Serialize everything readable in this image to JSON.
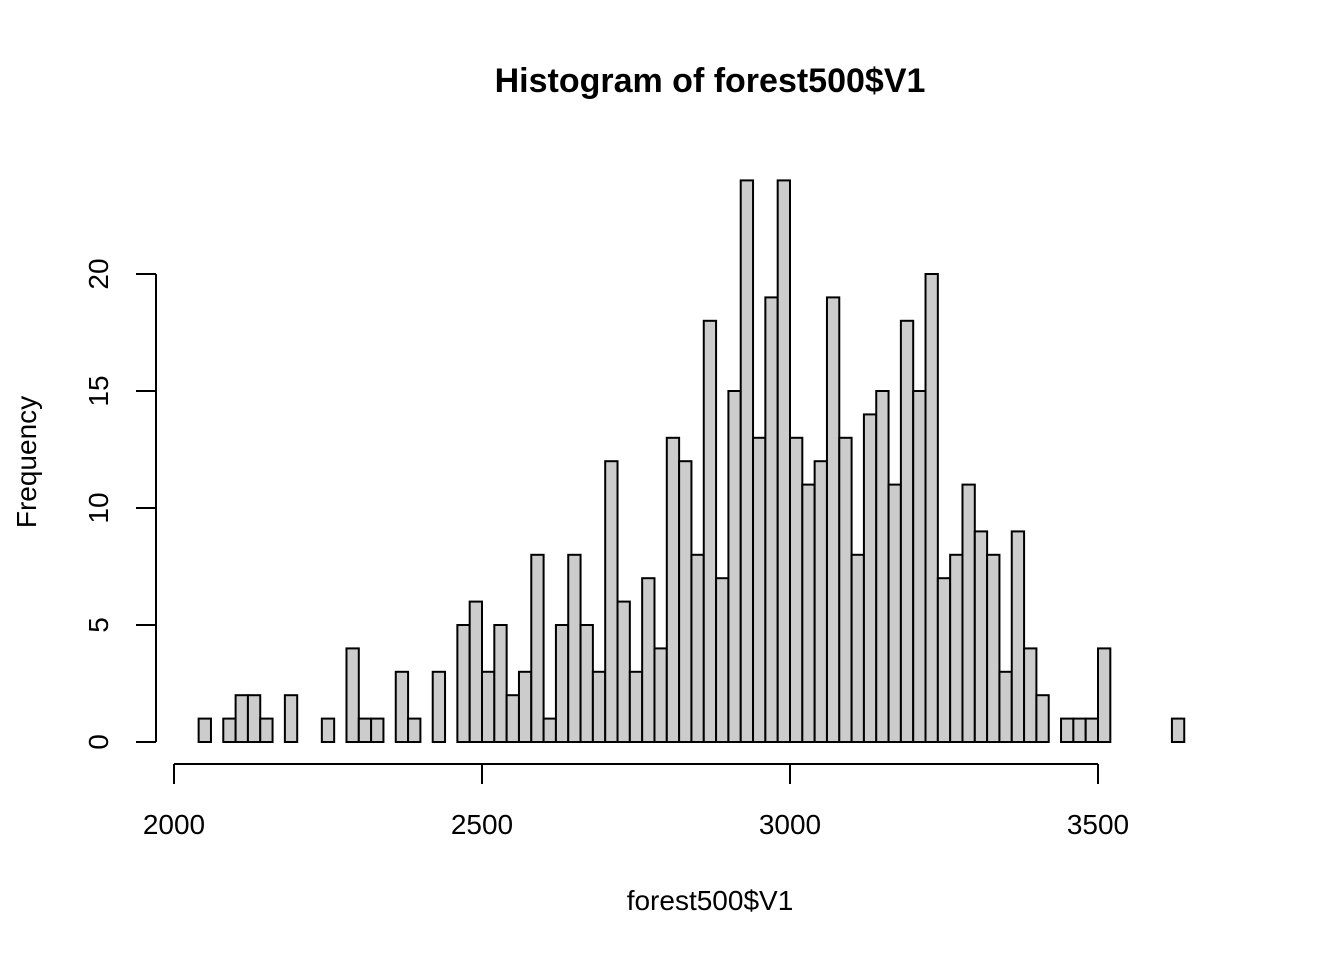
{
  "chart_data": {
    "type": "bar",
    "title": "Histogram of forest500$V1",
    "xlabel": "forest500$V1",
    "ylabel": "Frequency",
    "bin_start": 2040,
    "bin_width": 20,
    "counts": [
      1,
      0,
      1,
      2,
      2,
      1,
      0,
      2,
      0,
      0,
      1,
      0,
      4,
      1,
      1,
      0,
      3,
      1,
      0,
      3,
      0,
      5,
      6,
      3,
      5,
      2,
      3,
      8,
      1,
      5,
      8,
      5,
      3,
      12,
      6,
      3,
      7,
      4,
      13,
      12,
      8,
      18,
      7,
      15,
      24,
      13,
      19,
      24,
      13,
      11,
      12,
      19,
      13,
      8,
      14,
      15,
      11,
      18,
      15,
      20,
      7,
      8,
      11,
      9,
      8,
      3,
      9,
      4,
      2,
      0,
      1,
      1,
      1,
      4,
      0,
      0,
      0,
      0,
      0,
      1
    ],
    "xlim": [
      2000,
      3700
    ],
    "ylim": [
      0,
      24
    ],
    "x_ticks": [
      2000,
      2500,
      3000,
      3500
    ],
    "y_ticks": [
      0,
      5,
      10,
      15,
      20
    ],
    "colors": {
      "bar_fill": "#cccccc",
      "bar_stroke": "#000000"
    }
  }
}
